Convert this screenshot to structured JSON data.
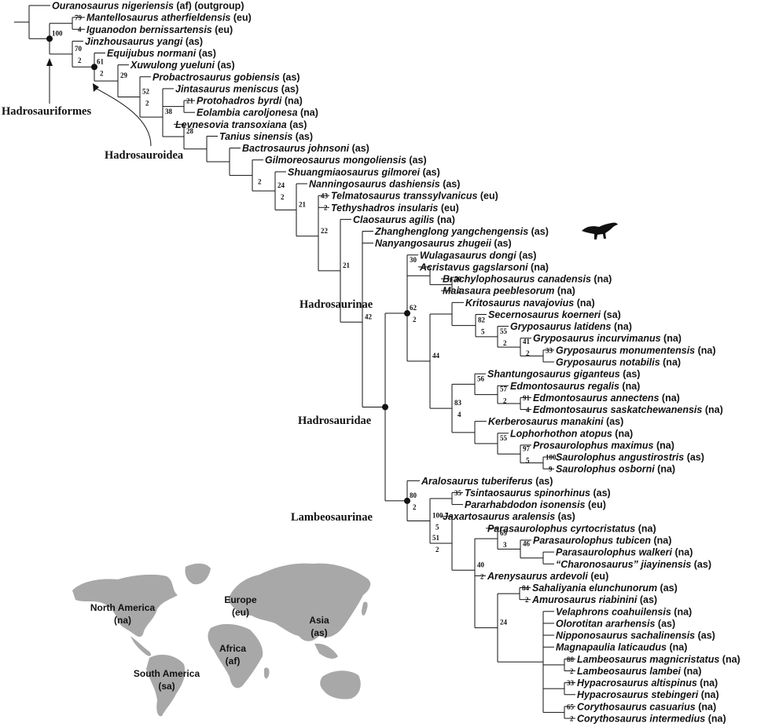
{
  "tree": {
    "tips": [
      {
        "name": "Ouranosaurus nigeriensis",
        "region": "(af)",
        "extra": "(outgroup)"
      },
      {
        "name": "Mantellosaurus atherfieldensis",
        "region": "(eu)"
      },
      {
        "name": "Iguanodon bernissartensis",
        "region": "(eu)"
      },
      {
        "name": "Jinzhousaurus yangi",
        "region": "(as)"
      },
      {
        "name": "Equijubus normani",
        "region": "(as)"
      },
      {
        "name": "Xuwulong yueluni",
        "region": "(as)"
      },
      {
        "name": "Probactrosaurus gobiensis",
        "region": "(as)"
      },
      {
        "name": "Jintasaurus meniscus",
        "region": "(as)"
      },
      {
        "name": "Protohadros byrdi",
        "region": "(na)"
      },
      {
        "name": "Eolambia caroljonesa",
        "region": "(na)"
      },
      {
        "name": "Levnesovia transoxiana",
        "region": "(as)"
      },
      {
        "name": "Tanius sinensis",
        "region": "(as)"
      },
      {
        "name": "Bactrosaurus johnsoni",
        "region": "(as)"
      },
      {
        "name": "Gilmoreosaurus mongoliensis",
        "region": "(as)"
      },
      {
        "name": "Shuangmiaosaurus gilmorei",
        "region": "(as)"
      },
      {
        "name": "Nanningosaurus dashiensis",
        "region": "(as)"
      },
      {
        "name": "Telmatosaurus transsylvanicus",
        "region": "(eu)"
      },
      {
        "name": "Tethyshadros insularis",
        "region": "(eu)"
      },
      {
        "name": "Claosaurus agilis",
        "region": "(na)"
      },
      {
        "name": "Zhanghenglong yangchengensis",
        "region": "(as)"
      },
      {
        "name": "Nanyangosaurus zhugeii",
        "region": "(as)"
      },
      {
        "name": "Wulagasaurus dongi",
        "region": "(as)"
      },
      {
        "name": "Acristavus gagslarsoni",
        "region": "(na)"
      },
      {
        "name": "Brachylophosaurus canadensis",
        "region": "(na)"
      },
      {
        "name": "Maiasaura  peeblesorum",
        "region": "(na)"
      },
      {
        "name": "Kritosaurus navajovius",
        "region": "(na)"
      },
      {
        "name": "Secernosaurus koerneri",
        "region": "(sa)"
      },
      {
        "name": "Gryposaurus latidens",
        "region": "(na)"
      },
      {
        "name": "Gryposaurus incurvimanus",
        "region": "(na)"
      },
      {
        "name": "Gryposaurus monumentensis",
        "region": "(na)"
      },
      {
        "name": "Gryposaurus notabilis",
        "region": "(na)"
      },
      {
        "name": "Shantungosaurus giganteus",
        "region": "(as)"
      },
      {
        "name": "Edmontosaurus regalis",
        "region": "(na)"
      },
      {
        "name": "Edmontosaurus annectens",
        "region": "(na)"
      },
      {
        "name": "Edmontosaurus saskatchewanensis",
        "region": "(na)"
      },
      {
        "name": "Kerberosaurus manakini",
        "region": "(as)"
      },
      {
        "name": "Lophorhothon atopus",
        "region": "(na)"
      },
      {
        "name": "Prosaurolophus maximus",
        "region": "(na)"
      },
      {
        "name": "Saurolophus angustirostris",
        "region": "(as)"
      },
      {
        "name": "Saurolophus osborni",
        "region": "(na)"
      },
      {
        "name": "Aralosaurus tuberiferus",
        "region": "(as)"
      },
      {
        "name": "Tsintaosaurus spinorhinus",
        "region": "(as)"
      },
      {
        "name": "Pararhabdodon isonensis",
        "region": "(eu)"
      },
      {
        "name": "Jaxartosaurus aralensis",
        "region": "(as)"
      },
      {
        "name": "Parasaurolophus  cyrtocristatus",
        "region": "(na)"
      },
      {
        "name": "Parasaurolophus tubicen",
        "region": "(na)"
      },
      {
        "name": "Parasaurolophus  walkeri",
        "region": "(na)"
      },
      {
        "name": "“Charonosaurus” jiayinensis",
        "region": "(as)"
      },
      {
        "name": "Arenysaurus ardevoli",
        "region": "(eu)"
      },
      {
        "name": "Sahaliyania elunchunorum",
        "region": "(as)"
      },
      {
        "name": "Amurosaurus riabinini",
        "region": "(as)"
      },
      {
        "name": "Velaphrons coahuilensis",
        "region": "(na)"
      },
      {
        "name": "Olorotitan ararhensis",
        "region": "(as)"
      },
      {
        "name": "Nipponosaurus sachalinensis",
        "region": "(as)"
      },
      {
        "name": "Magnapaulia laticaudus",
        "region": "(na)"
      },
      {
        "name": "Lambeosaurus magnicristatus",
        "region": "(na)"
      },
      {
        "name": "Lambeosaurus lambei",
        "region": "(na)"
      },
      {
        "name": "Hypacrosaurus altispinus",
        "region": "(na)"
      },
      {
        "name": "Hypacrosaurus stebingeri",
        "region": "(na)"
      },
      {
        "name": "Corythosaurus casuarius",
        "region": "(na)"
      },
      {
        "name": "Corythosaurus intermedius",
        "region": "(na)"
      }
    ],
    "support_values": [
      {
        "upper": "100"
      },
      {
        "upper": "79",
        "lower": "4"
      },
      {
        "upper": "70",
        "lower": "2"
      },
      {
        "upper": "61",
        "lower": "2"
      },
      {
        "upper": "29"
      },
      {
        "upper": "52",
        "lower": "2"
      },
      {
        "upper": "21"
      },
      {
        "upper": "38"
      },
      {
        "upper": "28"
      },
      {
        "lower": "2"
      },
      {
        "upper": "24",
        "lower": "2"
      },
      {
        "upper": "43",
        "lower": "2"
      },
      {
        "upper": "21"
      },
      {
        "upper": "22"
      },
      {
        "upper": "21"
      },
      {
        "upper": "42"
      },
      {
        "upper": "30"
      },
      {
        "upper": "70",
        "lower": "2"
      },
      {
        "upper": "62",
        "lower": "2"
      },
      {
        "upper": "82",
        "lower": "5"
      },
      {
        "upper": "55",
        "lower": "2"
      },
      {
        "upper": "41",
        "lower": "2"
      },
      {
        "upper": "33"
      },
      {
        "upper": "44"
      },
      {
        "upper": "56"
      },
      {
        "upper": "57",
        "lower": "2"
      },
      {
        "upper": "91",
        "lower": "4"
      },
      {
        "upper": "83",
        "lower": "4"
      },
      {
        "upper": "55"
      },
      {
        "upper": "97",
        "lower": "5"
      },
      {
        "upper": "100",
        "lower": "9"
      },
      {
        "upper": "80",
        "lower": "2"
      },
      {
        "upper": "35"
      },
      {
        "upper": "100",
        "lower": "5"
      },
      {
        "upper": "51",
        "lower": "2"
      },
      {
        "upper": "69",
        "lower": "3"
      },
      {
        "upper": "46"
      },
      {
        "upper": "40",
        "lower": "2"
      },
      {
        "upper": "84",
        "lower": "2"
      },
      {
        "upper": "24"
      },
      {
        "upper": "88",
        "lower": "2"
      },
      {
        "upper": "33"
      },
      {
        "upper": "65",
        "lower": "2"
      }
    ],
    "clade_labels": {
      "hadrosauriformes": "Hadrosauriformes",
      "hadrosauroidea": "Hadrosauroidea",
      "hadrosaurinae": "Hadrosaurinae",
      "hadrosauridae": "Hadrosauridae",
      "lambeosaurinae": "Lambeosaurinae"
    }
  },
  "map": {
    "land_color": "#a8a8a8",
    "regions": [
      {
        "name": "North America",
        "code": "(na)"
      },
      {
        "name": "Europe",
        "code": "(eu)"
      },
      {
        "name": "Asia",
        "code": "(as)"
      },
      {
        "name": "Africa",
        "code": "(af)"
      },
      {
        "name": "South America",
        "code": "(sa)"
      }
    ]
  }
}
